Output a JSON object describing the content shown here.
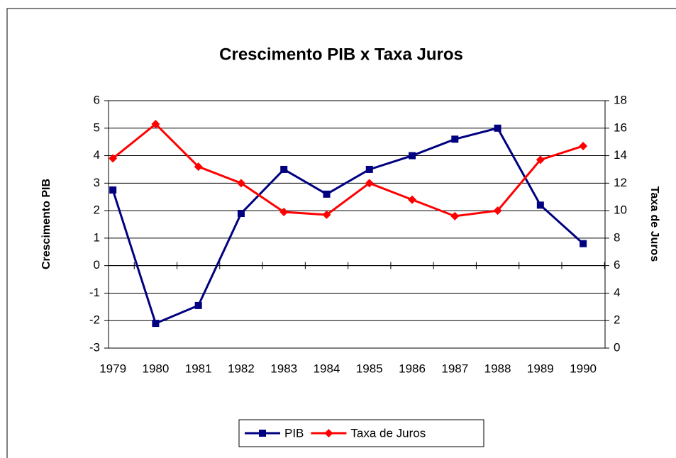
{
  "chart_data": {
    "type": "line",
    "title": "Crescimento PIB x Taxa Juros",
    "y_label": "Crescimento PIB",
    "y2_label": "Taxa de Juros",
    "categories": [
      "1979",
      "1980",
      "1981",
      "1982",
      "1983",
      "1984",
      "1985",
      "1986",
      "1987",
      "1988",
      "1989",
      "1990"
    ],
    "series": [
      {
        "name": "PIB",
        "color": "#000080",
        "marker": "square",
        "values": [
          2.75,
          -2.1,
          -1.45,
          1.9,
          3.5,
          2.6,
          3.5,
          4.0,
          4.6,
          5.0,
          2.2,
          0.8
        ]
      },
      {
        "name": "Taxa de Juros",
        "color": "#ff0000",
        "marker": "diamond",
        "axis": "y2",
        "values": [
          13.8,
          16.3,
          13.2,
          12.0,
          9.9,
          9.7,
          12.0,
          10.8,
          9.6,
          10.0,
          13.7,
          14.7
        ]
      }
    ],
    "ylim": [
      -3,
      6
    ],
    "yticks": [
      -3,
      -2,
      -1,
      0,
      1,
      2,
      3,
      4,
      5,
      6
    ],
    "y2lim": [
      0,
      18
    ],
    "y2ticks": [
      0,
      2,
      4,
      6,
      8,
      10,
      12,
      14,
      16,
      18
    ],
    "grid": true,
    "legend": "bottom"
  }
}
